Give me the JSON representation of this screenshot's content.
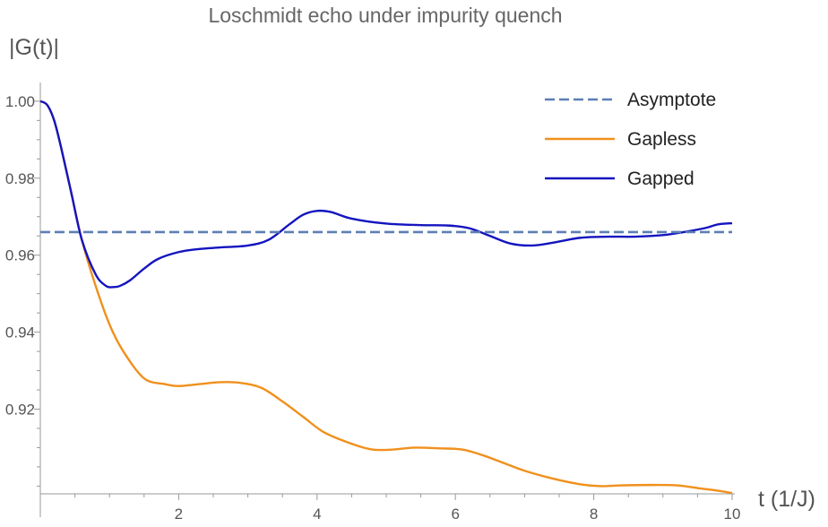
{
  "chart_data": {
    "type": "line",
    "title": "Loschmidt echo under impurity quench",
    "xlabel": "t (1/J)",
    "ylabel": "|G(t)|",
    "xlim": [
      0,
      10
    ],
    "ylim": [
      0.898,
      1.003
    ],
    "x_ticks": [
      2,
      4,
      6,
      8,
      10
    ],
    "y_ticks": [
      0.92,
      0.94,
      0.96,
      0.98,
      1.0
    ],
    "y_tick_labels": [
      "0.92",
      "0.94",
      "0.96",
      "0.98",
      "1.00"
    ],
    "grid": false,
    "legend_position": "top-right",
    "series": [
      {
        "name": "Asymptote",
        "style": "dashed",
        "color": "#5b7fb5",
        "x": [
          0,
          10
        ],
        "y": [
          0.966,
          0.966
        ]
      },
      {
        "name": "Gapless",
        "style": "solid",
        "color": "#f0901c",
        "x": [
          0,
          0.1,
          0.2,
          0.3,
          0.45,
          0.6,
          0.8,
          1.0,
          1.2,
          1.5,
          1.8,
          2.0,
          2.3,
          2.6,
          2.9,
          3.2,
          3.5,
          3.8,
          4.1,
          4.5,
          4.8,
          5.1,
          5.4,
          5.8,
          6.1,
          6.4,
          6.7,
          7.0,
          7.4,
          7.8,
          8.1,
          8.4,
          8.8,
          9.2,
          9.5,
          9.8,
          10.0
        ],
        "y": [
          1.0,
          0.999,
          0.995,
          0.988,
          0.976,
          0.964,
          0.952,
          0.942,
          0.935,
          0.928,
          0.9265,
          0.926,
          0.9265,
          0.927,
          0.9268,
          0.9255,
          0.922,
          0.918,
          0.914,
          0.911,
          0.9095,
          0.9095,
          0.91,
          0.9098,
          0.9095,
          0.908,
          0.906,
          0.904,
          0.902,
          0.9005,
          0.9,
          0.9002,
          0.9003,
          0.9002,
          0.8995,
          0.8988,
          0.8982
        ]
      },
      {
        "name": "Gapped",
        "style": "solid",
        "color": "#1414c0",
        "x": [
          0,
          0.1,
          0.2,
          0.3,
          0.45,
          0.6,
          0.8,
          0.95,
          1.05,
          1.15,
          1.3,
          1.5,
          1.7,
          2.0,
          2.3,
          2.6,
          3.0,
          3.3,
          3.6,
          3.8,
          4.0,
          4.2,
          4.5,
          5.0,
          5.5,
          5.9,
          6.2,
          6.5,
          6.8,
          7.1,
          7.4,
          7.8,
          8.2,
          8.6,
          9.0,
          9.3,
          9.6,
          9.8,
          10.0
        ],
        "y": [
          1.0,
          0.999,
          0.995,
          0.988,
          0.976,
          0.964,
          0.955,
          0.952,
          0.9517,
          0.952,
          0.9535,
          0.9565,
          0.959,
          0.9608,
          0.9616,
          0.962,
          0.9625,
          0.964,
          0.968,
          0.9705,
          0.9715,
          0.9712,
          0.9695,
          0.9682,
          0.9678,
          0.9677,
          0.967,
          0.965,
          0.963,
          0.9625,
          0.9632,
          0.9645,
          0.9648,
          0.9648,
          0.9652,
          0.966,
          0.967,
          0.968,
          0.9683
        ]
      }
    ]
  }
}
